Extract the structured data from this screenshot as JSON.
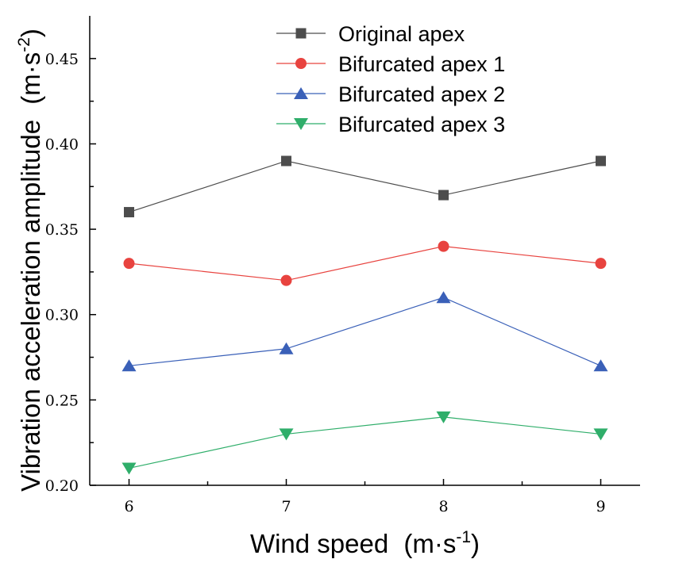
{
  "chart_data": {
    "type": "line",
    "title": "",
    "xlabel": "Wind speed",
    "xlabel_unit": "(m·s",
    "xlabel_exp": "-1",
    "xlabel_close": ")",
    "ylabel": "Vibration acceleration amplitude",
    "ylabel_unit": "(m·s",
    "ylabel_exp": "-2",
    "ylabel_close": ")",
    "x": [
      6,
      7,
      8,
      9
    ],
    "x_tick_labels": [
      "6",
      "7",
      "8",
      "9"
    ],
    "xlim": [
      5.75,
      9.25
    ],
    "ylim": [
      0.2,
      0.475
    ],
    "y_ticks": [
      0.2,
      0.25,
      0.3,
      0.35,
      0.4,
      0.45
    ],
    "y_tick_labels": [
      "0.20",
      "0.25",
      "0.30",
      "0.35",
      "0.40",
      "0.45"
    ],
    "grid": false,
    "legend_position": "top",
    "series": [
      {
        "name": "Original apex",
        "values": [
          0.36,
          0.39,
          0.37,
          0.39
        ],
        "color": "#4d4d4d",
        "marker": "square"
      },
      {
        "name": "Bifurcated apex 1",
        "values": [
          0.33,
          0.32,
          0.34,
          0.33
        ],
        "color": "#e8433f",
        "marker": "circle"
      },
      {
        "name": "Bifurcated apex 2",
        "values": [
          0.27,
          0.28,
          0.31,
          0.27
        ],
        "color": "#3a60b8",
        "marker": "triangle-up"
      },
      {
        "name": "Bifurcated apex 3",
        "values": [
          0.21,
          0.23,
          0.24,
          0.23
        ],
        "color": "#2fae6a",
        "marker": "triangle-down"
      }
    ]
  }
}
